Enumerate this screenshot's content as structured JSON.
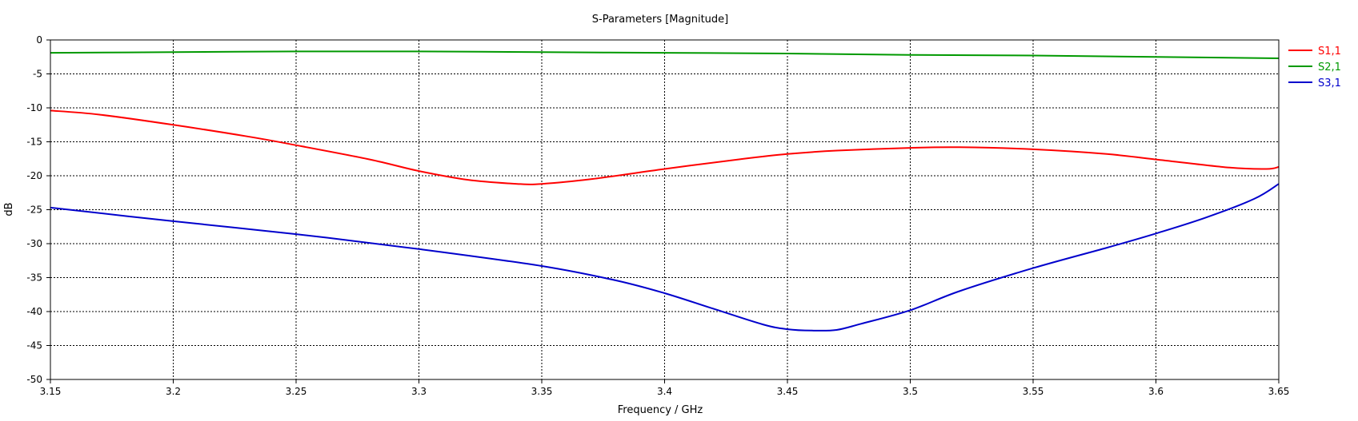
{
  "chart_data": {
    "type": "line",
    "title": "S-Parameters [Magnitude]",
    "xlabel": "Frequency / GHz",
    "ylabel": "dB",
    "xlim": [
      3.15,
      3.65
    ],
    "ylim": [
      -50,
      0
    ],
    "x_ticks": [
      "3.15",
      "3.2",
      "3.25",
      "3.3",
      "3.35",
      "3.4",
      "3.45",
      "3.5",
      "3.55",
      "3.6",
      "3.65"
    ],
    "y_ticks": [
      "0",
      "-5",
      "-10",
      "-15",
      "-20",
      "-25",
      "-30",
      "-35",
      "-40",
      "-45",
      "-50"
    ],
    "grid": true,
    "legend_position": "top-right",
    "series": [
      {
        "name": "S1,1",
        "color": "#ff0000",
        "x": [
          3.15,
          3.17,
          3.2,
          3.23,
          3.25,
          3.28,
          3.3,
          3.32,
          3.34,
          3.35,
          3.37,
          3.4,
          3.43,
          3.45,
          3.47,
          3.5,
          3.52,
          3.55,
          3.58,
          3.6,
          3.63,
          3.645,
          3.65
        ],
        "y": [
          -10.4,
          -11.0,
          -12.5,
          -14.2,
          -15.5,
          -17.6,
          -19.3,
          -20.6,
          -21.2,
          -21.2,
          -20.5,
          -19.0,
          -17.6,
          -16.8,
          -16.3,
          -15.9,
          -15.8,
          -16.1,
          -16.8,
          -17.6,
          -18.8,
          -19.0,
          -18.7
        ]
      },
      {
        "name": "S2,1",
        "color": "#009900",
        "x": [
          3.15,
          3.2,
          3.25,
          3.3,
          3.35,
          3.4,
          3.45,
          3.5,
          3.55,
          3.6,
          3.65
        ],
        "y": [
          -1.9,
          -1.8,
          -1.7,
          -1.7,
          -1.8,
          -1.9,
          -2.0,
          -2.2,
          -2.3,
          -2.5,
          -2.7
        ]
      },
      {
        "name": "S3,1",
        "color": "#0000cc",
        "x": [
          3.15,
          3.2,
          3.25,
          3.3,
          3.35,
          3.38,
          3.4,
          3.42,
          3.44,
          3.45,
          3.46,
          3.47,
          3.48,
          3.5,
          3.52,
          3.55,
          3.58,
          3.6,
          3.62,
          3.64,
          3.65
        ],
        "y": [
          -24.7,
          -26.7,
          -28.6,
          -30.8,
          -33.3,
          -35.4,
          -37.3,
          -39.6,
          -41.9,
          -42.6,
          -42.8,
          -42.7,
          -41.8,
          -39.8,
          -37.0,
          -33.6,
          -30.6,
          -28.5,
          -26.2,
          -23.4,
          -21.2
        ]
      }
    ]
  }
}
